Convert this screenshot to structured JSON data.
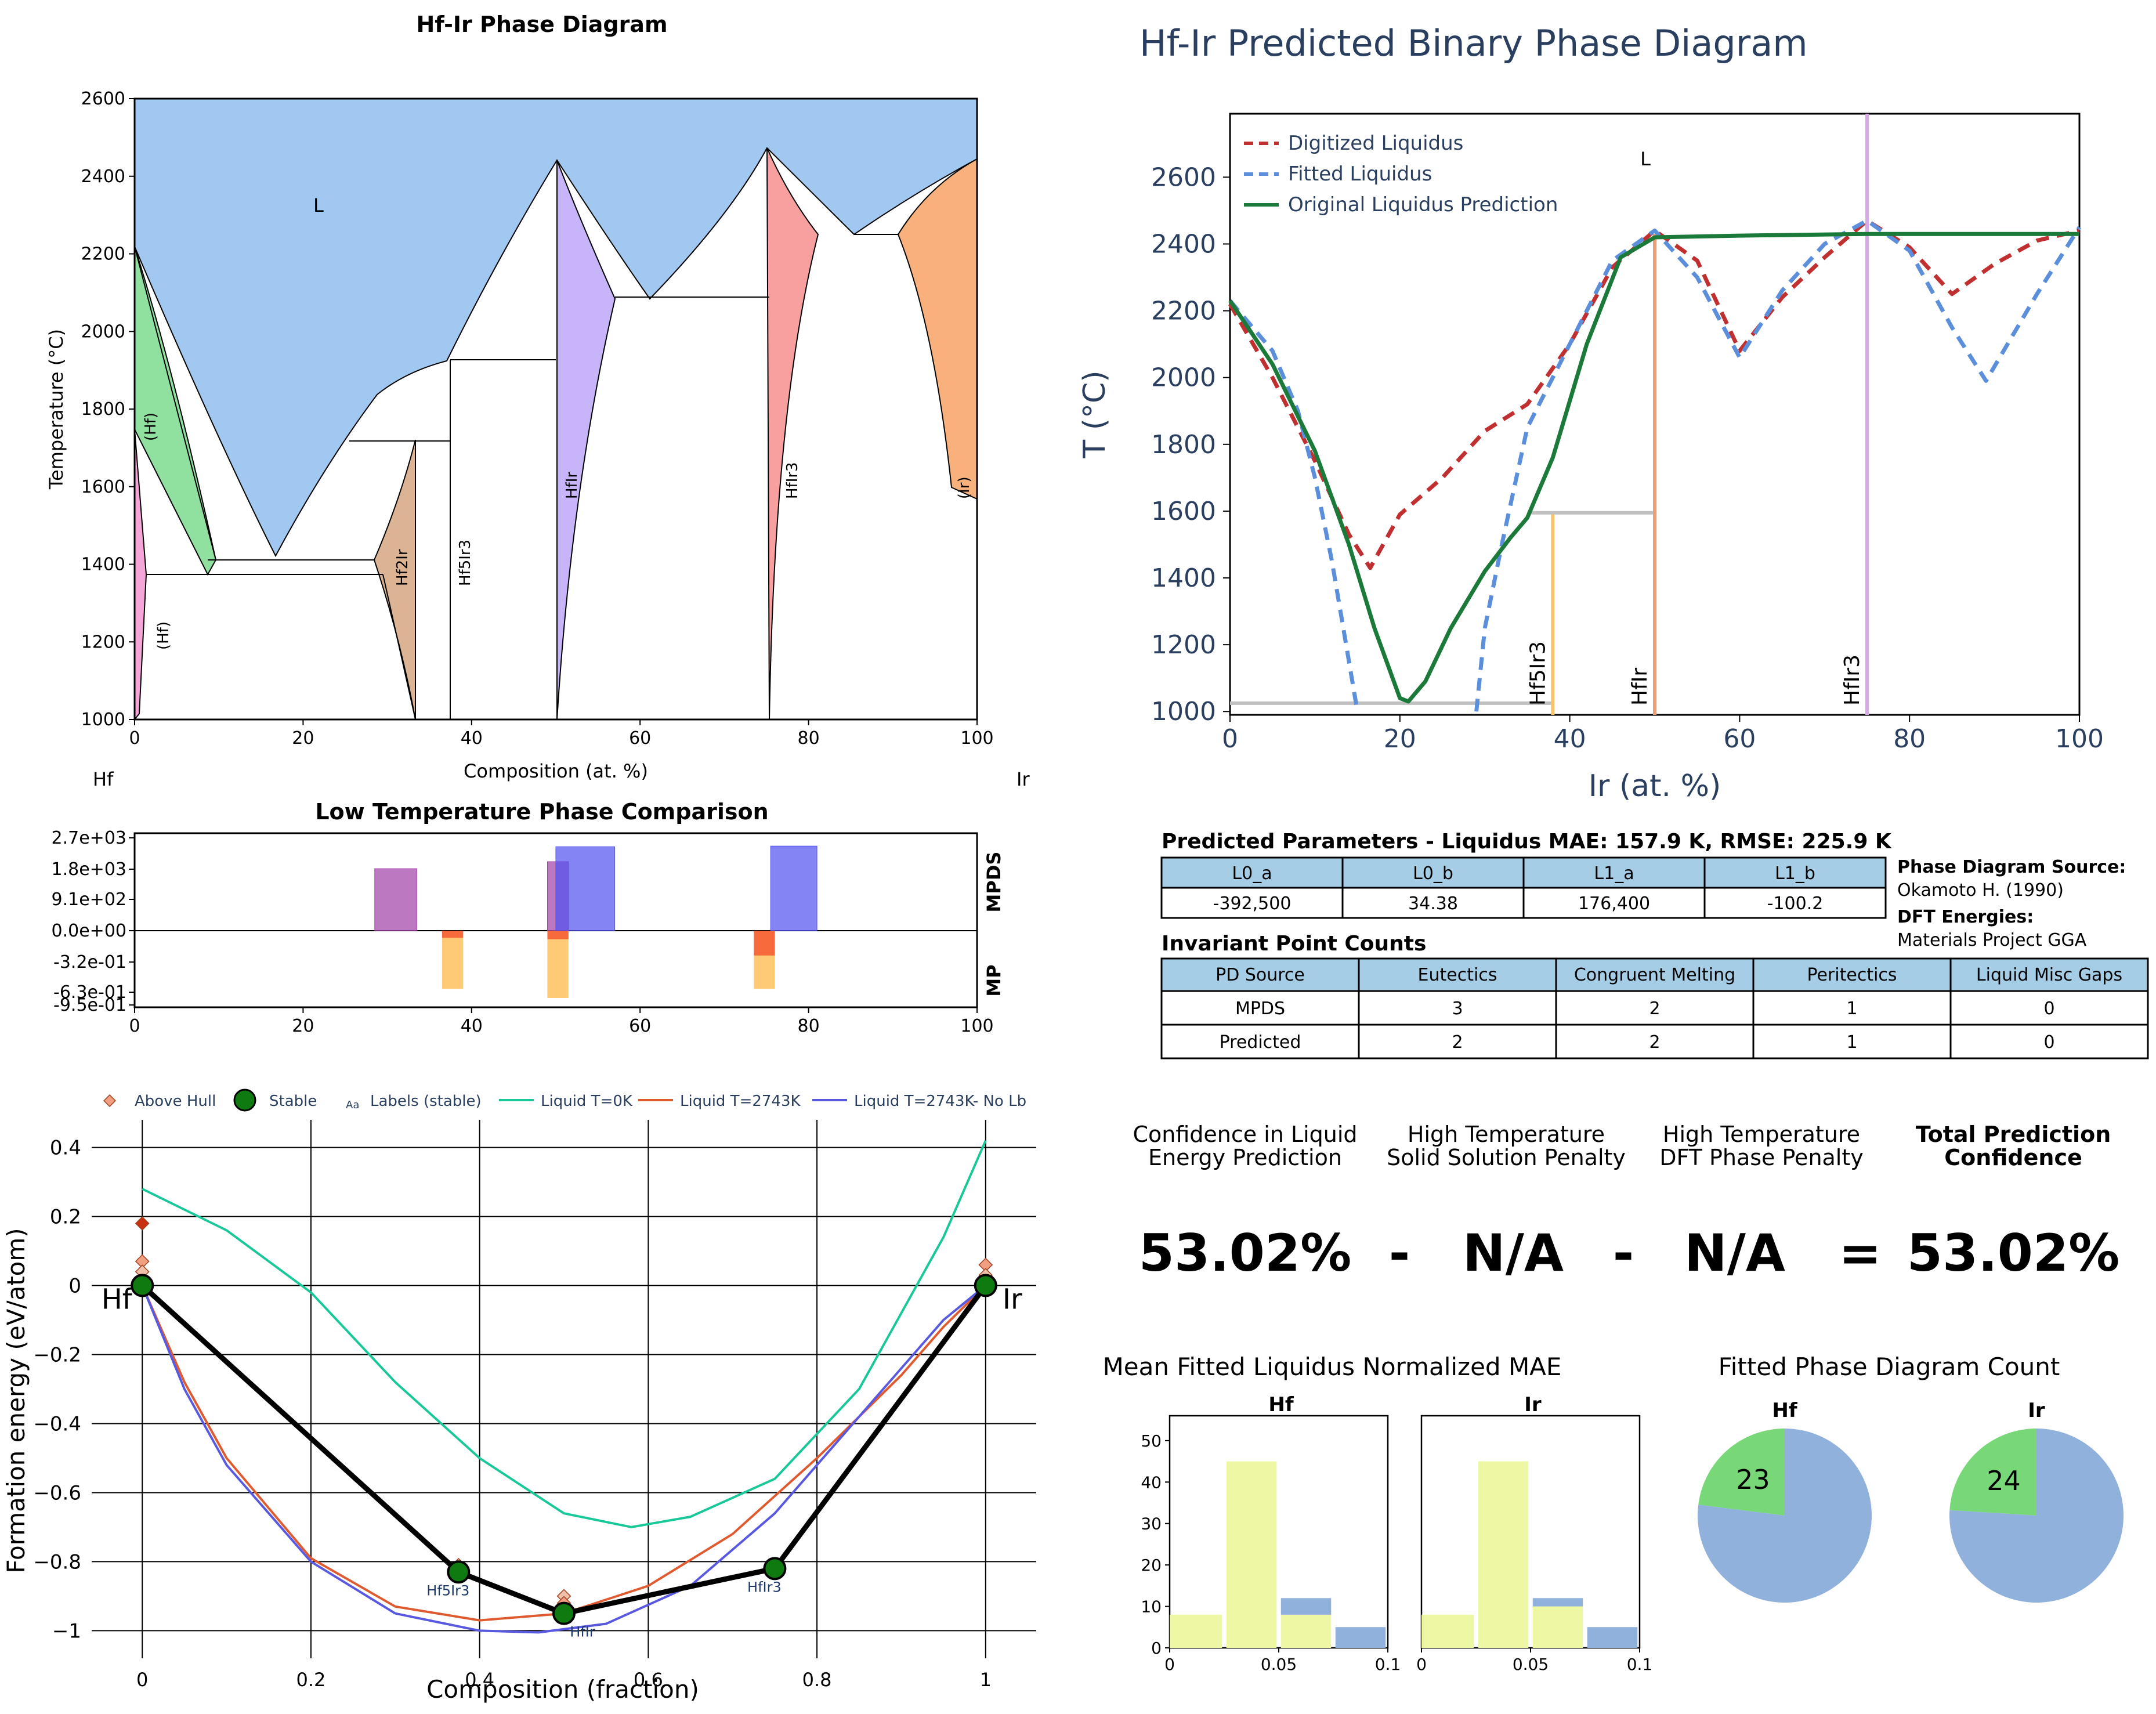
{
  "panel_titles": {
    "phase_diagram": "Hf-Ir Phase Diagram",
    "predicted": "Hf-Ir Predicted Binary Phase Diagram",
    "low_temp": "Low Temperature Phase Comparison",
    "mae": "Mean Fitted Liquidus Normalized MAE",
    "count": "Fitted Phase Diagram Count"
  },
  "phase_diagram": {
    "xlabel": "Composition (at. %)",
    "ylabel": "Temperature (°C)",
    "left_element": "Hf",
    "right_element": "Ir",
    "x_ticks": [
      "0",
      "20",
      "40",
      "60",
      "80",
      "100"
    ],
    "y_ticks": [
      "1000",
      "1200",
      "1400",
      "1600",
      "1800",
      "2000",
      "2200",
      "2400",
      "2600"
    ],
    "labels": {
      "liquid": "L",
      "hf_high": "(Hf)",
      "hf_low": "(Hf)",
      "hf2ir": "Hf2Ir",
      "hf5ir3": "Hf5Ir3",
      "hfir": "HfIr",
      "hfir3": "HfIr3",
      "ir": "(Ir)"
    },
    "colors": {
      "liquid": "#a0c8f0",
      "hf_beta": "#90e0a0",
      "hf_alpha": "#f4a6d8",
      "hf2ir": "#dcb494",
      "hfir": "#c8b4f8",
      "hfir3": "#f8a0a0",
      "ir": "#f8b07c"
    }
  },
  "chart_data": [
    {
      "type": "line",
      "title": "Hf-Ir Predicted Binary Phase Diagram",
      "xlabel": "Ir (at. %)",
      "ylabel": "T (°C)",
      "xlim": [
        0,
        100
      ],
      "ylim": [
        990,
        2790
      ],
      "x_ticks": [
        "0",
        "20",
        "40",
        "60",
        "80",
        "100"
      ],
      "y_ticks": [
        "1000",
        "1200",
        "1400",
        "1600",
        "1800",
        "2000",
        "2200",
        "2400",
        "2600"
      ],
      "liquid_label": "L",
      "series": [
        {
          "name": "Digitized Liquidus",
          "style": "dashed",
          "color": "#c03030",
          "points": [
            [
              0,
              2220
            ],
            [
              5,
              2000
            ],
            [
              10,
              1750
            ],
            [
              14,
              1530
            ],
            [
              16.5,
              1430
            ],
            [
              20,
              1590
            ],
            [
              25,
              1700
            ],
            [
              30,
              1840
            ],
            [
              35,
              1920
            ],
            [
              40,
              2100
            ],
            [
              45,
              2330
            ],
            [
              50,
              2440
            ],
            [
              55,
              2350
            ],
            [
              60,
              2080
            ],
            [
              65,
              2240
            ],
            [
              70,
              2360
            ],
            [
              75,
              2470
            ],
            [
              80,
              2390
            ],
            [
              85,
              2250
            ],
            [
              90,
              2340
            ],
            [
              95,
              2410
            ],
            [
              100,
              2440
            ]
          ]
        },
        {
          "name": "Fitted Liquidus",
          "style": "dashed",
          "color": "#5b8fdc",
          "points": [
            [
              0,
              2230
            ],
            [
              5,
              2080
            ],
            [
              8,
              1900
            ],
            [
              10,
              1700
            ],
            [
              12,
              1450
            ],
            [
              14,
              1150
            ],
            [
              15,
              1000
            ],
            [
              null,
              null
            ],
            [
              29,
              1000
            ],
            [
              30,
              1250
            ],
            [
              32,
              1500
            ],
            [
              35,
              1850
            ],
            [
              40,
              2100
            ],
            [
              45,
              2350
            ],
            [
              50,
              2440
            ],
            [
              55,
              2300
            ],
            [
              60,
              2060
            ],
            [
              65,
              2260
            ],
            [
              70,
              2400
            ],
            [
              75,
              2470
            ],
            [
              80,
              2380
            ],
            [
              85,
              2150
            ],
            [
              89,
              1990
            ],
            [
              95,
              2250
            ],
            [
              100,
              2450
            ]
          ]
        },
        {
          "name": "Original Liquidus Prediction",
          "style": "solid",
          "color": "#1b7a3a",
          "points": [
            [
              0,
              2230
            ],
            [
              5,
              2040
            ],
            [
              10,
              1780
            ],
            [
              14,
              1500
            ],
            [
              17,
              1250
            ],
            [
              20,
              1040
            ],
            [
              21,
              1030
            ],
            [
              23,
              1090
            ],
            [
              26,
              1250
            ],
            [
              30,
              1420
            ],
            [
              33,
              1520
            ],
            [
              35,
              1580
            ],
            [
              38,
              1760
            ],
            [
              42,
              2100
            ],
            [
              46,
              2360
            ],
            [
              50,
              2420
            ],
            [
              60,
              2425
            ],
            [
              75,
              2430
            ],
            [
              90,
              2430
            ],
            [
              100,
              2430
            ]
          ]
        }
      ],
      "compounds": [
        {
          "name": "Hf5Ir3",
          "x": 38,
          "ymax": 1590,
          "color": "#f2c46c"
        },
        {
          "name": "HfIr",
          "x": 50,
          "ymax": 2430,
          "color": "#e8a07c"
        },
        {
          "name": "HfIr3",
          "x": 75,
          "ymax": 2790,
          "color": "#d8a8e8"
        }
      ],
      "tie_lines": [
        {
          "x1": 0,
          "x2": 38,
          "y": 1025,
          "color": "#c0c0c0"
        },
        {
          "x1": 35,
          "x2": 50,
          "y": 1595,
          "color": "#c0c0c0"
        }
      ],
      "legend": "top-left"
    },
    {
      "type": "bar",
      "title": "Low Temperature Phase Comparison",
      "xlim": [
        0,
        100
      ],
      "x_ticks": [
        "0",
        "20",
        "40",
        "60",
        "80",
        "100"
      ],
      "top_label": "MPDS",
      "bottom_label": "MP",
      "y_ticks": [
        "2.7e+03",
        "1.8e+03",
        "9.1e+02",
        "0.0e+00",
        "-3.2e-01",
        "-6.3e-01",
        "-9.5e-01"
      ],
      "mpds_bars": [
        {
          "x0": 28.5,
          "x1": 33.5,
          "value": 1950,
          "color": "#a040a8"
        },
        {
          "x0": 49,
          "x1": 51.5,
          "value": 2170,
          "color": "#a040a8"
        },
        {
          "x0": 50,
          "x1": 57,
          "value": 2640,
          "color": "#5050f0"
        },
        {
          "x0": 75.5,
          "x1": 81,
          "value": 2660,
          "color": "#5050f0"
        }
      ],
      "mp_bars": [
        {
          "x0": 36.5,
          "x1": 39,
          "value": -0.82,
          "color": "#fdb848"
        },
        {
          "x0": 36.5,
          "x1": 39,
          "value": -0.1,
          "color": "#f44a28"
        },
        {
          "x0": 49,
          "x1": 51.5,
          "value": -0.95,
          "color": "#fdb848"
        },
        {
          "x0": 49,
          "x1": 51.5,
          "value": -0.12,
          "color": "#f44a28"
        },
        {
          "x0": 73.5,
          "x1": 76,
          "value": -0.82,
          "color": "#fdb848"
        },
        {
          "x0": 73.5,
          "x1": 76,
          "value": -0.35,
          "color": "#f44a28"
        }
      ]
    },
    {
      "type": "line",
      "title": "",
      "xlabel": "Composition (fraction)",
      "ylabel": "Formation energy (eV/atom)",
      "xlim": [
        -0.06,
        1.06
      ],
      "ylim": [
        -1.08,
        0.48
      ],
      "x_ticks": [
        "0",
        "0.2",
        "0.4",
        "0.6",
        "0.8",
        "1"
      ],
      "y_ticks": [
        "0.4",
        "0.2",
        "0",
        "−0.2",
        "−0.4",
        "−0.6",
        "−0.8",
        "−1"
      ],
      "legend_entries": [
        "Above Hull",
        "Stable",
        "Labels (stable)",
        "Liquid T=0K",
        "Liquid T=2743K",
        "Liquid T=2743K- No Lb"
      ],
      "legend_labels_icon": "Aa",
      "series": [
        {
          "name": "Liquid T=0K",
          "color": "#18c898",
          "points": [
            [
              0,
              0.28
            ],
            [
              0.1,
              0.16
            ],
            [
              0.2,
              -0.02
            ],
            [
              0.3,
              -0.28
            ],
            [
              0.4,
              -0.5
            ],
            [
              0.5,
              -0.66
            ],
            [
              0.58,
              -0.7
            ],
            [
              0.65,
              -0.67
            ],
            [
              0.75,
              -0.56
            ],
            [
              0.85,
              -0.3
            ],
            [
              0.95,
              0.14
            ],
            [
              1,
              0.42
            ]
          ]
        },
        {
          "name": "Liquid T=2743K",
          "color": "#e05a30",
          "points": [
            [
              0,
              0
            ],
            [
              0.05,
              -0.28
            ],
            [
              0.1,
              -0.5
            ],
            [
              0.2,
              -0.79
            ],
            [
              0.3,
              -0.93
            ],
            [
              0.4,
              -0.97
            ],
            [
              0.5,
              -0.95
            ],
            [
              0.6,
              -0.87
            ],
            [
              0.7,
              -0.72
            ],
            [
              0.8,
              -0.5
            ],
            [
              0.9,
              -0.26
            ],
            [
              0.95,
              -0.12
            ],
            [
              1,
              0
            ]
          ]
        },
        {
          "name": "Liquid T=2743K- No Lb",
          "color": "#5858e0",
          "points": [
            [
              0,
              0
            ],
            [
              0.05,
              -0.3
            ],
            [
              0.1,
              -0.52
            ],
            [
              0.2,
              -0.8
            ],
            [
              0.3,
              -0.95
            ],
            [
              0.4,
              -1.0
            ],
            [
              0.47,
              -1.005
            ],
            [
              0.55,
              -0.98
            ],
            [
              0.65,
              -0.87
            ],
            [
              0.75,
              -0.66
            ],
            [
              0.85,
              -0.38
            ],
            [
              0.95,
              -0.1
            ],
            [
              1,
              0
            ]
          ]
        },
        {
          "name": "Hull",
          "color": "#000000",
          "points": [
            [
              0,
              0
            ],
            [
              0.375,
              -0.83
            ],
            [
              0.5,
              -0.95
            ],
            [
              0.75,
              -0.82
            ],
            [
              1,
              0
            ]
          ]
        }
      ],
      "stable_points": [
        {
          "x": 0,
          "y": 0,
          "label": "Hf"
        },
        {
          "x": 0.375,
          "y": -0.83,
          "label": "Hf5Ir3"
        },
        {
          "x": 0.5,
          "y": -0.95,
          "label": "HfIr"
        },
        {
          "x": 0.75,
          "y": -0.82,
          "label": "HfIr3"
        },
        {
          "x": 1,
          "y": 0,
          "label": "Ir"
        }
      ],
      "above_hull": [
        {
          "x": 0,
          "y": 0.18,
          "color": "#c83010"
        },
        {
          "x": 0,
          "y": 0.07,
          "color": "#f0a080"
        },
        {
          "x": 0,
          "y": 0.04,
          "color": "#f0c0a8"
        },
        {
          "x": 0.375,
          "y": -0.81,
          "color": "#f0c0a8"
        },
        {
          "x": 0.5,
          "y": -0.9,
          "color": "#f0c0a8"
        },
        {
          "x": 0.5,
          "y": -0.92,
          "color": "#f0a080"
        },
        {
          "x": 1,
          "y": 0.06,
          "color": "#f0a080"
        },
        {
          "x": 1,
          "y": 0.03,
          "color": "#f0c0a8"
        }
      ]
    },
    {
      "type": "bar",
      "title": "Hf",
      "x_ticks": [
        "0",
        "0.05",
        "0.1"
      ],
      "y_ticks": [
        "0",
        "10",
        "20",
        "30",
        "40",
        "50"
      ],
      "xlim": [
        0,
        0.1
      ],
      "ylim": [
        0,
        56
      ],
      "stacks": [
        {
          "x0": 0.0,
          "x1": 0.024,
          "yellow": 8,
          "blue": 0
        },
        {
          "x0": 0.026,
          "x1": 0.049,
          "yellow": 45,
          "blue": 0
        },
        {
          "x0": 0.051,
          "x1": 0.074,
          "yellow": 8,
          "blue": 4
        },
        {
          "x0": 0.076,
          "x1": 0.099,
          "yellow": 0,
          "blue": 5
        }
      ]
    },
    {
      "type": "bar",
      "title": "Ir",
      "x_ticks": [
        "0",
        "0.05",
        "0.1"
      ],
      "xlim": [
        0,
        0.1
      ],
      "ylim": [
        0,
        56
      ],
      "stacks": [
        {
          "x0": 0.0,
          "x1": 0.024,
          "yellow": 8,
          "blue": 0
        },
        {
          "x0": 0.026,
          "x1": 0.049,
          "yellow": 45,
          "blue": 0
        },
        {
          "x0": 0.051,
          "x1": 0.074,
          "yellow": 10,
          "blue": 2
        },
        {
          "x0": 0.076,
          "x1": 0.099,
          "yellow": 0,
          "blue": 5
        }
      ]
    },
    {
      "type": "pie",
      "title": "Hf",
      "slices": [
        {
          "label": "23",
          "value": 23,
          "color": "#78d878"
        },
        {
          "label": "",
          "value": 77,
          "color": "#8fb1dc"
        }
      ]
    },
    {
      "type": "pie",
      "title": "Ir",
      "slices": [
        {
          "label": "24",
          "value": 24,
          "color": "#78d878"
        },
        {
          "label": "",
          "value": 76,
          "color": "#8fb1dc"
        }
      ]
    }
  ],
  "params": {
    "title": "Predicted Parameters - Liquidus MAE: 157.9 K, RMSE: 225.9 K",
    "headers": [
      "L0_a",
      "L0_b",
      "L1_a",
      "L1_b"
    ],
    "values": [
      "-392,500",
      "34.38",
      "176,400",
      "-100.2"
    ]
  },
  "source": {
    "pd_label": "Phase Diagram Source:",
    "pd_value": "Okamoto H. (1990)",
    "dft_label": "DFT Energies:",
    "dft_value": "Materials Project GGA"
  },
  "invariants": {
    "title": "Invariant Point Counts",
    "headers": [
      "PD Source",
      "Eutectics",
      "Congruent Melting",
      "Peritectics",
      "Liquid Misc Gaps"
    ],
    "rows": [
      [
        "MPDS",
        "3",
        "2",
        "1",
        "0"
      ],
      [
        "Predicted",
        "2",
        "2",
        "1",
        "0"
      ]
    ]
  },
  "confidence": {
    "h1a": "Confidence in Liquid",
    "h1b": "Energy Prediction",
    "h2a": "High Temperature",
    "h2b": "Solid Solution Penalty",
    "h3a": "High Temperature",
    "h3b": "DFT Phase Penalty",
    "h4a": "Total Prediction",
    "h4b": "Confidence",
    "v1": "53.02%",
    "op1": "-",
    "v2": "N/A",
    "op2": "-",
    "v3": "N/A",
    "op3": "=",
    "v4": "53.02%"
  }
}
